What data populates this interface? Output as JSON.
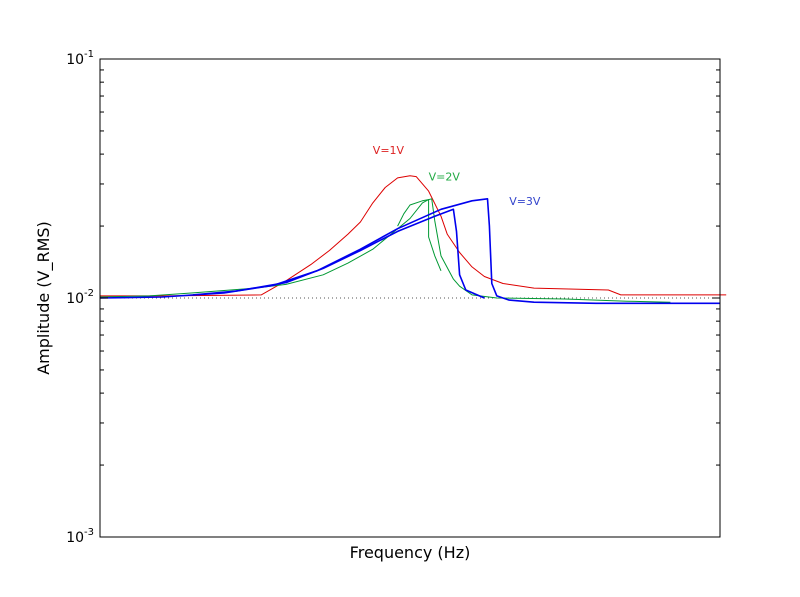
{
  "chart_data": {
    "type": "line",
    "xlabel": "Frequency (Hz)",
    "ylabel": "Amplitude (V_RMS)",
    "yscale": "log",
    "ylim": [
      0.001,
      0.1
    ],
    "xlim": [
      0,
      1
    ],
    "x_tick_labels": [],
    "y_ticks": [
      {
        "base": "10",
        "exp": "-1",
        "value": 0.1
      },
      {
        "base": "10",
        "exp": "-2",
        "value": 0.01
      },
      {
        "base": "10",
        "exp": "-3",
        "value": 0.001
      }
    ],
    "grid": false,
    "reference_line": {
      "y": 0.01,
      "style": "dotted",
      "color": "#555555"
    },
    "annotations": [
      {
        "text": "V=1V",
        "color": "#dd2222",
        "x": 0.44,
        "y": 0.04
      },
      {
        "text": "V=2V",
        "color": "#22aa44",
        "x": 0.53,
        "y": 0.031
      },
      {
        "text": "V=3V",
        "color": "#3344cc",
        "x": 0.66,
        "y": 0.0245
      }
    ],
    "series": [
      {
        "label": "V=1V",
        "color": "#dd0000",
        "width": 1,
        "points": [
          [
            0,
            0.0102
          ],
          [
            0.1,
            0.0102
          ],
          [
            0.26,
            0.0103
          ],
          [
            0.3,
            0.0118
          ],
          [
            0.34,
            0.0138
          ],
          [
            0.37,
            0.0158
          ],
          [
            0.4,
            0.0185
          ],
          [
            0.42,
            0.0208
          ],
          [
            0.44,
            0.025
          ],
          [
            0.46,
            0.029
          ],
          [
            0.48,
            0.0318
          ],
          [
            0.5,
            0.0325
          ],
          [
            0.51,
            0.0322
          ],
          [
            0.53,
            0.028
          ],
          [
            0.55,
            0.022
          ],
          [
            0.56,
            0.0185
          ],
          [
            0.58,
            0.0155
          ],
          [
            0.6,
            0.0135
          ],
          [
            0.62,
            0.0123
          ],
          [
            0.65,
            0.0115
          ],
          [
            0.7,
            0.011
          ],
          [
            0.82,
            0.0108
          ],
          [
            0.84,
            0.0103
          ],
          [
            1.01,
            0.0103
          ]
        ]
      },
      {
        "label": "V=2V",
        "color": "#009933",
        "width": 1,
        "points": [
          [
            0,
            0.0101
          ],
          [
            0.08,
            0.0102
          ],
          [
            0.15,
            0.0105
          ],
          [
            0.25,
            0.011
          ],
          [
            0.3,
            0.0114
          ],
          [
            0.36,
            0.0125
          ],
          [
            0.4,
            0.014
          ],
          [
            0.44,
            0.016
          ],
          [
            0.48,
            0.0195
          ],
          [
            0.5,
            0.0215
          ],
          [
            0.52,
            0.025
          ],
          [
            0.53,
            0.0258
          ],
          [
            0.535,
            0.026
          ],
          [
            0.54,
            0.021
          ],
          [
            0.55,
            0.015
          ],
          [
            0.57,
            0.012
          ],
          [
            0.58,
            0.0112
          ],
          [
            0.6,
            0.0103
          ],
          [
            0.64,
            0.01
          ],
          [
            0.75,
            0.0099
          ],
          [
            0.85,
            0.0097
          ],
          [
            0.92,
            0.0096
          ]
        ]
      },
      {
        "label": "V=2V",
        "color": "#009933",
        "width": 1,
        "points": [
          [
            0.48,
            0.02
          ],
          [
            0.49,
            0.0225
          ],
          [
            0.5,
            0.0245
          ],
          [
            0.52,
            0.0255
          ],
          [
            0.53,
            0.0258
          ],
          [
            0.53,
            0.018
          ],
          [
            0.54,
            0.015
          ],
          [
            0.55,
            0.013
          ]
        ]
      },
      {
        "label": "V=3V",
        "color": "#0000ee",
        "width": 1.6,
        "points": [
          [
            0,
            0.01
          ],
          [
            0.1,
            0.0101
          ],
          [
            0.2,
            0.0105
          ],
          [
            0.28,
            0.0113
          ],
          [
            0.35,
            0.013
          ],
          [
            0.42,
            0.016
          ],
          [
            0.48,
            0.0195
          ],
          [
            0.55,
            0.0235
          ],
          [
            0.6,
            0.0255
          ],
          [
            0.625,
            0.026
          ],
          [
            0.628,
            0.02
          ],
          [
            0.632,
            0.0115
          ],
          [
            0.64,
            0.0102
          ],
          [
            0.66,
            0.0098
          ],
          [
            0.7,
            0.0096
          ],
          [
            0.8,
            0.0095
          ],
          [
            1.0,
            0.0095
          ]
        ]
      },
      {
        "label": "V=3V",
        "color": "#0000ee",
        "width": 1.6,
        "points": [
          [
            0.15,
            0.0103
          ],
          [
            0.22,
            0.0107
          ],
          [
            0.3,
            0.0116
          ],
          [
            0.36,
            0.0133
          ],
          [
            0.42,
            0.0158
          ],
          [
            0.48,
            0.019
          ],
          [
            0.54,
            0.022
          ],
          [
            0.57,
            0.0235
          ],
          [
            0.575,
            0.019
          ],
          [
            0.58,
            0.0125
          ],
          [
            0.59,
            0.0108
          ],
          [
            0.62,
            0.01
          ]
        ]
      }
    ]
  }
}
